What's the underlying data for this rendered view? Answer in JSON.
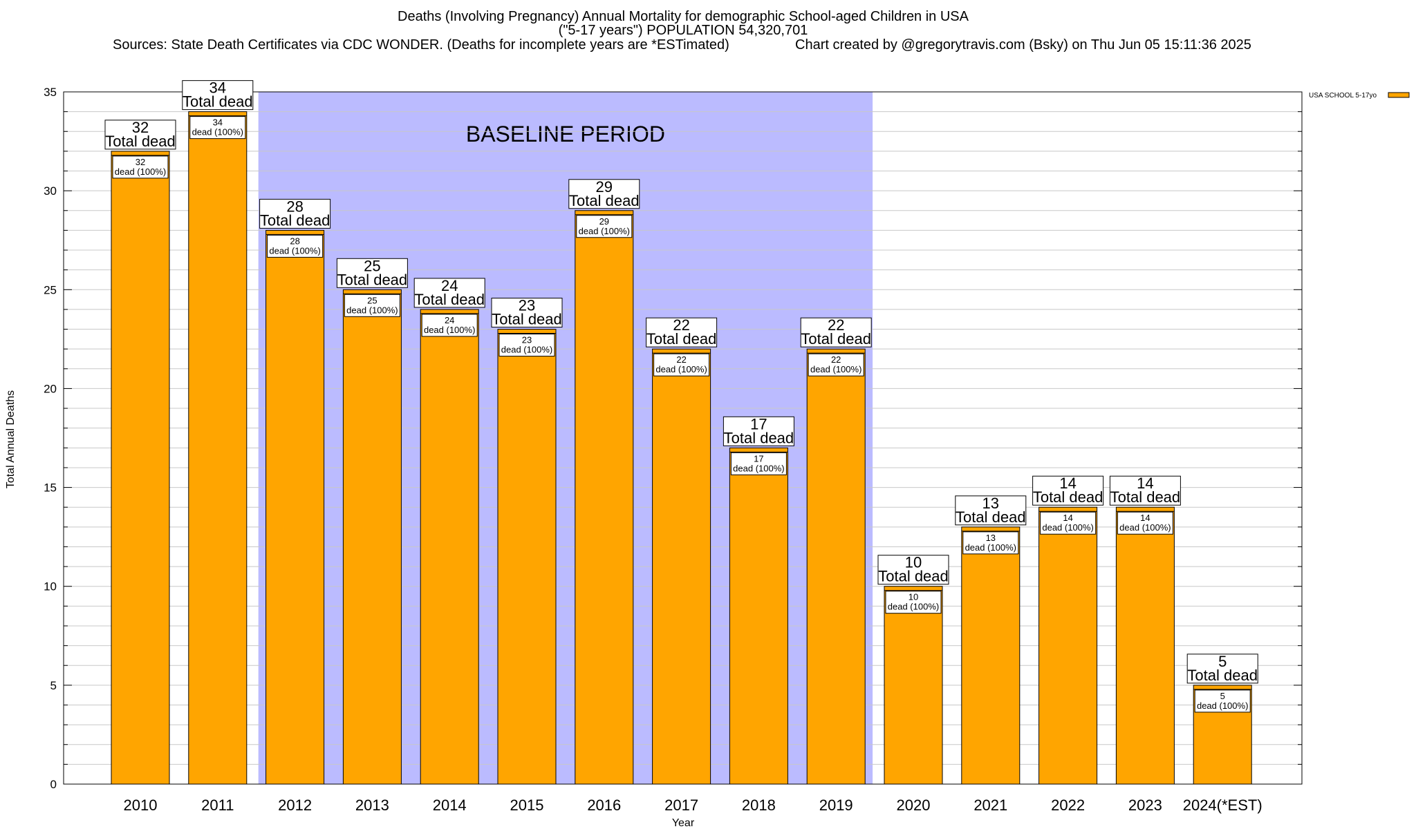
{
  "chart_data": {
    "type": "bar",
    "title_lines": [
      "Deaths (Involving Pregnancy) Annual Mortality for demographic School-aged Children in USA",
      "(\"5-17 years\") POPULATION 54,320,701"
    ],
    "sources": "Sources: State Death Certificates via CDC WONDER. (Deaths for incomplete years are *ESTimated)",
    "credit": "Chart created by @gregorytravis.com (Bsky) on Thu Jun 05 15:11:36 2025",
    "xlabel": "Year",
    "ylabel": "Total Annual Deaths",
    "ylim": [
      0,
      35
    ],
    "y_ticks": [
      0,
      5,
      10,
      15,
      20,
      25,
      30,
      35
    ],
    "grid": true,
    "legend_position": "top-right",
    "categories": [
      "2010",
      "2011",
      "2012",
      "2013",
      "2014",
      "2015",
      "2016",
      "2017",
      "2018",
      "2019",
      "2020",
      "2021",
      "2022",
      "2023",
      "2024(*EST)"
    ],
    "series": [
      {
        "name": "USA SCHOOL 5-17yo",
        "color": "#FFA500",
        "values": [
          32,
          34,
          28,
          25,
          24,
          23,
          29,
          22,
          17,
          22,
          10,
          13,
          14,
          14,
          5
        ]
      }
    ],
    "bar_labels": {
      "total_text": "Total dead",
      "inner_text": "dead (100%)"
    },
    "baseline_period": {
      "label": "BASELINE PERIOD",
      "from_category": "2012",
      "to_category": "2019",
      "color": "#BBBBFF"
    }
  }
}
